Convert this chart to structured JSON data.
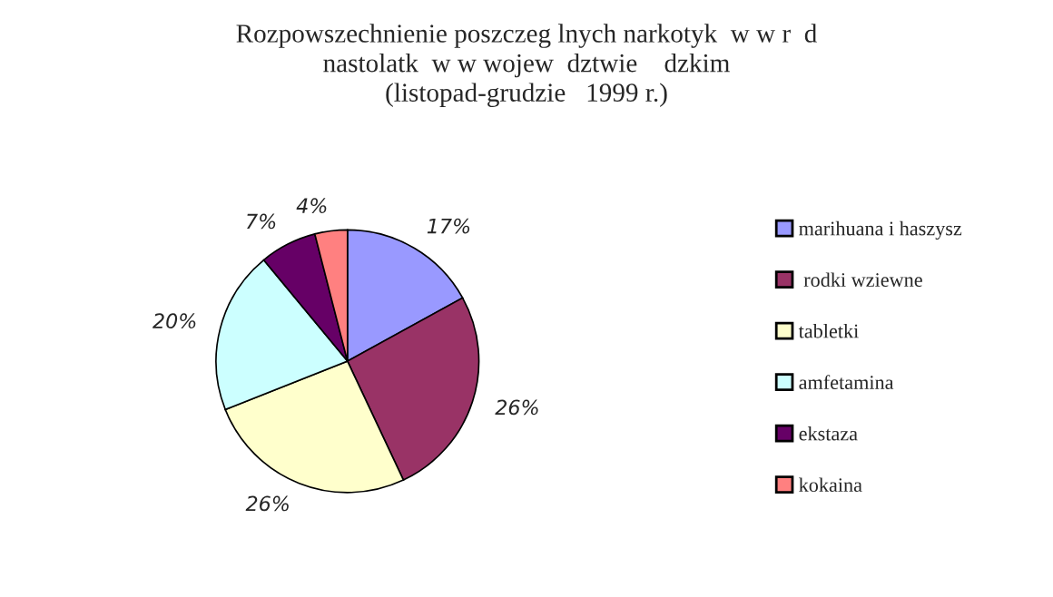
{
  "chart_data": {
    "type": "pie",
    "title": "Rozpowszechnienie poszczeg lnych narkotyk  w w r  d\nnastolatk  w w wojew  dztwie    dzkim\n(listopad-grudzie   1999 r.)",
    "categories": [
      "marihuana i haszysz",
      " rodki wziewne",
      "tabletki",
      "amfetamina",
      "ekstaza",
      "kokaina"
    ],
    "values": [
      17,
      26,
      26,
      20,
      7,
      4
    ],
    "value_labels": [
      "17%",
      "26%",
      "26%",
      "20%",
      "7%",
      "4%"
    ],
    "colors": [
      "#9999ff",
      "#993366",
      "#ffffcc",
      "#ccffff",
      "#660066",
      "#ff8080"
    ],
    "legend": "right"
  }
}
